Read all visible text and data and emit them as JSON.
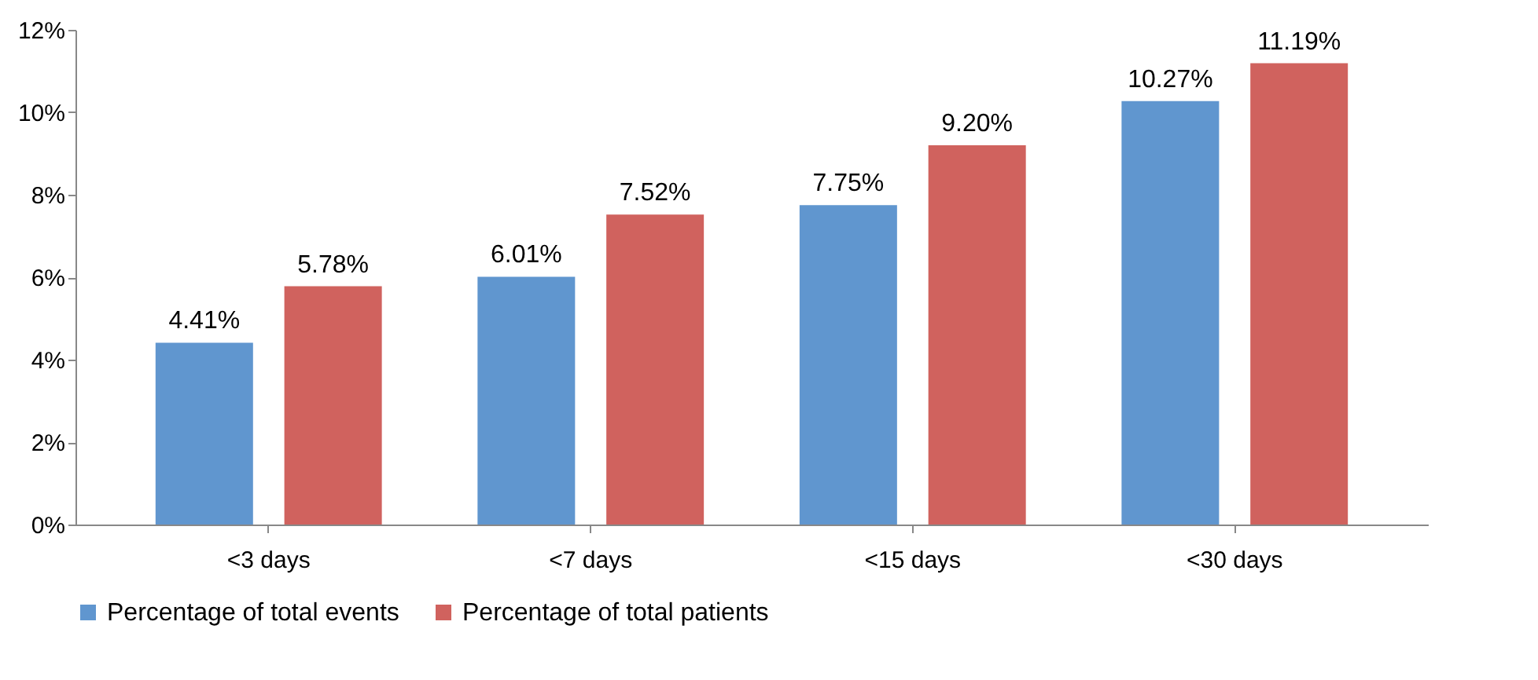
{
  "chart_data": {
    "type": "bar",
    "categories": [
      "<3 days",
      "<7 days",
      "<15 days",
      "<30 days"
    ],
    "series": [
      {
        "name": "Percentage of total events",
        "color": "#6096cf",
        "values": [
          4.41,
          6.01,
          7.75,
          10.27
        ],
        "value_labels": [
          "4.41%",
          "6.01%",
          "7.75%",
          "10.27%"
        ]
      },
      {
        "name": "Percentage of total patients",
        "color": "#d0625e",
        "values": [
          5.78,
          7.52,
          9.2,
          11.19
        ],
        "value_labels": [
          "5.78%",
          "7.52%",
          "9.20%",
          "11.19%"
        ]
      }
    ],
    "ylim": [
      0,
      12
    ],
    "yticks": [
      {
        "value": 0,
        "label": "0%"
      },
      {
        "value": 2,
        "label": "2%"
      },
      {
        "value": 4,
        "label": "4%"
      },
      {
        "value": 6,
        "label": "6%"
      },
      {
        "value": 8,
        "label": "8%"
      },
      {
        "value": 10,
        "label": "10%"
      },
      {
        "value": 12,
        "label": "12%"
      }
    ],
    "grid": false,
    "legend": "bottom"
  }
}
